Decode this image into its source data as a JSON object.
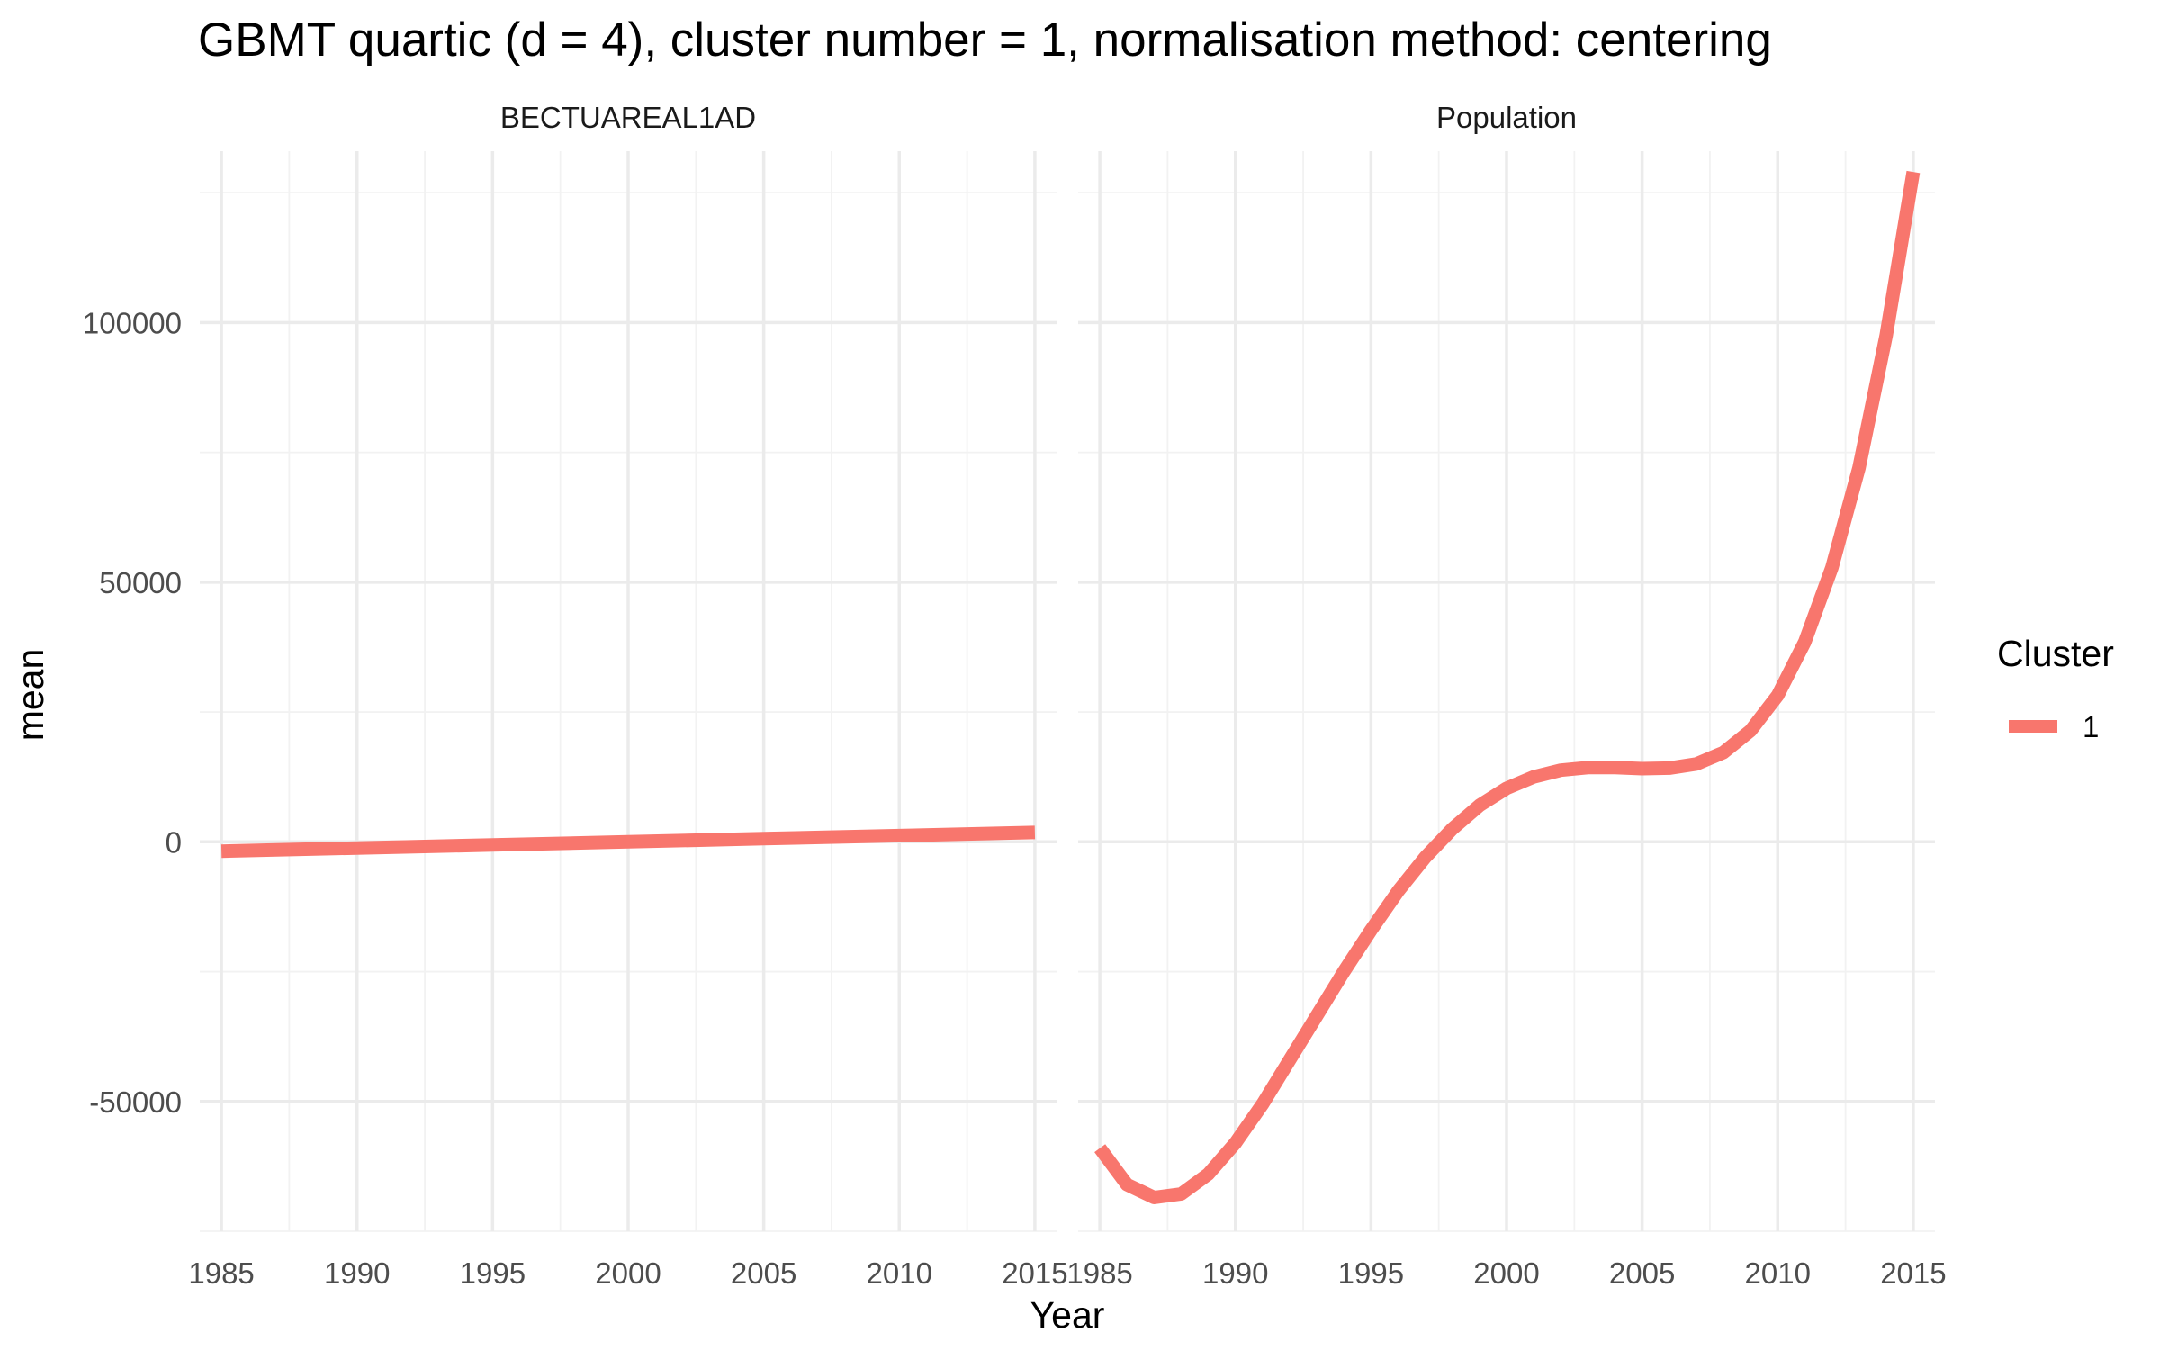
{
  "chart_data": {
    "type": "line",
    "title": "GBMT quartic (d = 4), cluster number = 1, normalisation method: centering",
    "xlabel": "Year",
    "ylabel": "mean",
    "x_ticks": [
      1985,
      1990,
      1995,
      2000,
      2005,
      2010,
      2015
    ],
    "y_ticks": [
      -50000,
      0,
      50000,
      100000
    ],
    "y_tick_labels": [
      "-50000",
      "0",
      "50000",
      "100000"
    ],
    "xlim": [
      1984.2,
      2015.8
    ],
    "ylim": [
      -75000,
      133000
    ],
    "grid": true,
    "legend": {
      "title": "Cluster",
      "position": "right",
      "entries": [
        "1"
      ]
    },
    "series_color": "#F8766D",
    "facets": [
      {
        "label": "BECTUAREAL1AD",
        "series": [
          {
            "name": "1",
            "x": [
              1985,
              1990,
              1995,
              2000,
              2005,
              2010,
              2015
            ],
            "y": [
              -1800,
              -1200,
              -600,
              0,
              600,
              1200,
              1800
            ]
          }
        ]
      },
      {
        "label": "Population",
        "series": [
          {
            "name": "1",
            "x": [
              1985,
              1986,
              1987,
              1988,
              1989,
              1990,
              1991,
              1992,
              1993,
              1994,
              1995,
              1996,
              1997,
              1998,
              1999,
              2000,
              2001,
              2002,
              2003,
              2004,
              2005,
              2006,
              2007,
              2008,
              2009,
              2010,
              2011,
              2012,
              2013,
              2014,
              2015
            ],
            "y": [
              -59000,
              -66000,
              -68500,
              -67800,
              -64000,
              -58000,
              -50500,
              -42000,
              -33500,
              -25000,
              -17000,
              -9500,
              -3000,
              2500,
              7000,
              10300,
              12500,
              13800,
              14300,
              14300,
              14100,
              14200,
              15000,
              17200,
              21400,
              28200,
              38500,
              52800,
              72000,
              97500,
              129000
            ]
          }
        ]
      }
    ]
  }
}
